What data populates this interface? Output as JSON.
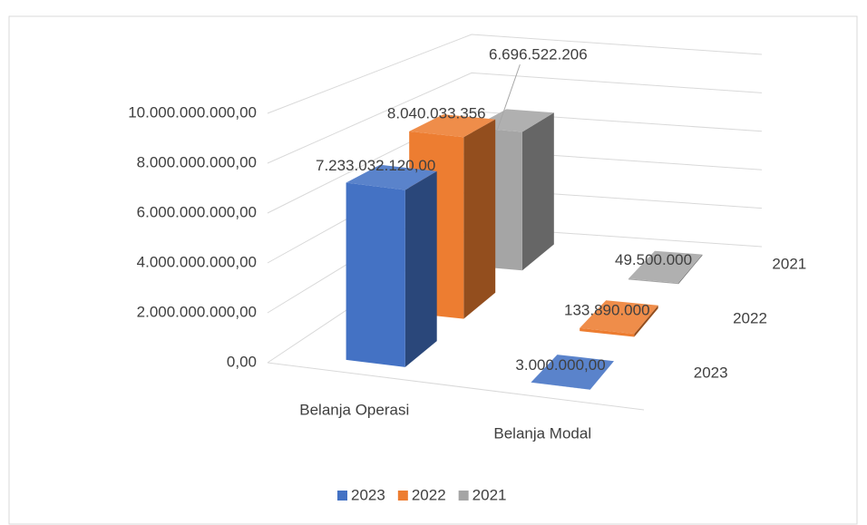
{
  "chart_data": {
    "type": "bar3d",
    "categories": [
      "Belanja Operasi",
      "Belanja Modal"
    ],
    "series": [
      {
        "name": "2023",
        "color": "#4472c4",
        "values": [
          7233032120,
          3000000
        ],
        "value_labels": [
          "7.233.032.120,00",
          "3.000.000,00"
        ]
      },
      {
        "name": "2022",
        "color": "#ed7d31",
        "values": [
          8040033356,
          133890000
        ],
        "value_labels": [
          "8.040.033.356",
          "133.890.000"
        ]
      },
      {
        "name": "2021",
        "color": "#a5a5a5",
        "values": [
          6696522206,
          49500000
        ],
        "value_labels": [
          "6.696.522.206",
          "49.500.000"
        ]
      }
    ],
    "ylim": [
      0,
      10000000000
    ],
    "yticks": [
      {
        "value": 0,
        "label": "0,00"
      },
      {
        "value": 2000000000,
        "label": "2.000.000.000,00"
      },
      {
        "value": 4000000000,
        "label": "4.000.000.000,00"
      },
      {
        "value": 6000000000,
        "label": "6.000.000.000,00"
      },
      {
        "value": 8000000000,
        "label": "8.000.000.000,00"
      },
      {
        "value": 10000000000,
        "label": "10.000.000.000,00"
      }
    ],
    "grid": true,
    "legend": "bottom"
  }
}
